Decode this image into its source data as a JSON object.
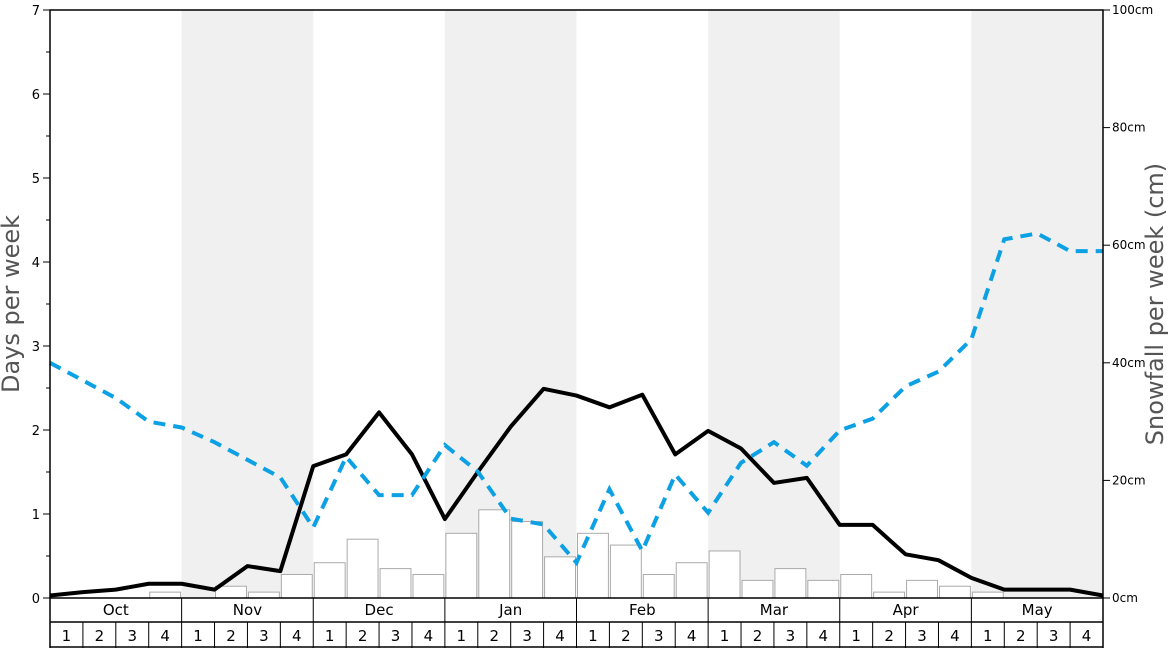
{
  "chart_data": {
    "type": "bar",
    "ylabel": "Days per week",
    "ylabel_right": "Snowfall per week (cm)",
    "ylim_left": [
      0,
      7
    ],
    "ylim_right": [
      0,
      100
    ],
    "yticks_left": [
      "0",
      "1",
      "2",
      "3",
      "4",
      "5",
      "6",
      "7"
    ],
    "yticks_right": [
      "0cm",
      "20cm",
      "40cm",
      "60cm",
      "80cm",
      "100cm"
    ],
    "months": [
      "Oct",
      "Nov",
      "Dec",
      "Jan",
      "Feb",
      "Mar",
      "Apr",
      "May"
    ],
    "weeks": [
      "1",
      "2",
      "3",
      "4"
    ],
    "shaded_months": [
      "Nov",
      "Jan",
      "Mar",
      "May"
    ],
    "series": [
      {
        "kind": "bar",
        "axis": "left",
        "values": [
          0,
          0,
          0,
          0.07,
          0,
          0.14,
          0.07,
          0.28,
          0.42,
          0.7,
          0.35,
          0.28,
          0.77,
          1.05,
          0.91,
          0.49,
          0.77,
          0.63,
          0.28,
          0.42,
          0.56,
          0.21,
          0.35,
          0.21,
          0.28,
          0.07,
          0.21,
          0.14,
          0.07,
          0,
          0,
          0
        ]
      },
      {
        "kind": "line",
        "axis": "left",
        "values": [
          0.03,
          0.07,
          0.1,
          0.17,
          0.17,
          0.1,
          0.38,
          0.32,
          1.57,
          1.71,
          2.21,
          1.71,
          0.94,
          1.5,
          2.04,
          2.49,
          2.41,
          2.27,
          2.42,
          1.71,
          1.99,
          1.78,
          1.37,
          1.43,
          0.87,
          0.87,
          0.52,
          0.45,
          0.24,
          0.1,
          0.1,
          0.1,
          0.03
        ]
      },
      {
        "kind": "dashed-line",
        "axis": "right",
        "values": [
          40,
          37,
          34,
          30,
          29,
          26.5,
          23.5,
          20.5,
          12,
          24,
          17.5,
          17.5,
          26,
          21.5,
          13.5,
          12.5,
          6,
          18.5,
          8,
          21,
          14.5,
          23,
          26.5,
          22.5,
          28.5,
          30.5,
          36,
          38.5,
          44,
          61,
          62,
          59,
          59
        ]
      }
    ],
    "colors": {
      "bar_fill": "#ffffff",
      "bar_stroke": "#aaaaaa",
      "line": "#000000",
      "dashed_line": "#0ca0e4",
      "shade": "#f0f0f0"
    }
  }
}
